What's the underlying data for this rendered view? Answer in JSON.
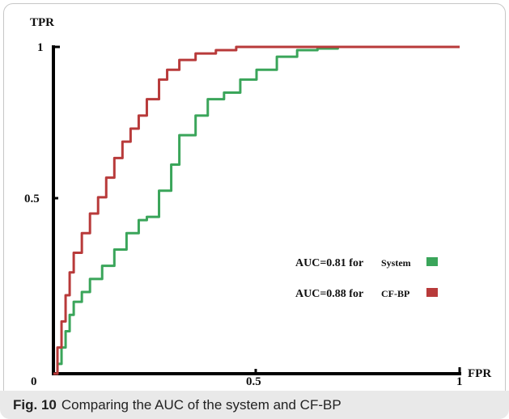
{
  "chart_data": {
    "type": "line",
    "xlabel": "FPR",
    "ylabel": "TPR",
    "xlim": [
      0,
      1
    ],
    "ylim": [
      0,
      1
    ],
    "x_ticks": [
      "0",
      "0.5",
      "1"
    ],
    "y_ticks": [
      "1",
      "0.5"
    ],
    "grid": false,
    "legend_placement": "lower-right",
    "series": [
      {
        "name": "System",
        "auc_label": "AUC=0.81 for",
        "color": "#3aa55a",
        "x": [
          0,
          0.01,
          0.02,
          0.03,
          0.04,
          0.05,
          0.07,
          0.09,
          0.12,
          0.15,
          0.18,
          0.21,
          0.23,
          0.26,
          0.29,
          0.31,
          0.35,
          0.38,
          0.42,
          0.46,
          0.5,
          0.55,
          0.6,
          0.65,
          0.7,
          1.0
        ],
        "y": [
          0,
          0.03,
          0.08,
          0.13,
          0.18,
          0.22,
          0.25,
          0.29,
          0.33,
          0.38,
          0.43,
          0.47,
          0.48,
          0.56,
          0.64,
          0.73,
          0.79,
          0.84,
          0.86,
          0.9,
          0.93,
          0.97,
          0.99,
          0.995,
          1.0,
          1.0
        ]
      },
      {
        "name": "CF-BP",
        "auc_label": "AUC=0.88 for",
        "color": "#b83a3a",
        "x": [
          0,
          0.01,
          0.02,
          0.03,
          0.04,
          0.05,
          0.07,
          0.09,
          0.11,
          0.13,
          0.15,
          0.17,
          0.19,
          0.21,
          0.23,
          0.26,
          0.28,
          0.31,
          0.35,
          0.4,
          0.45,
          0.5,
          0.55,
          0.6,
          1.0
        ],
        "y": [
          0,
          0.08,
          0.16,
          0.24,
          0.31,
          0.37,
          0.43,
          0.49,
          0.54,
          0.6,
          0.66,
          0.71,
          0.75,
          0.79,
          0.84,
          0.9,
          0.93,
          0.96,
          0.98,
          0.99,
          1.0,
          1.0,
          1.0,
          1.0,
          1.0
        ]
      }
    ]
  },
  "figure": {
    "caption_label": "Fig. 10",
    "caption_text": "Comparing the AUC of the system and CF-BP",
    "origin_label": "0"
  }
}
